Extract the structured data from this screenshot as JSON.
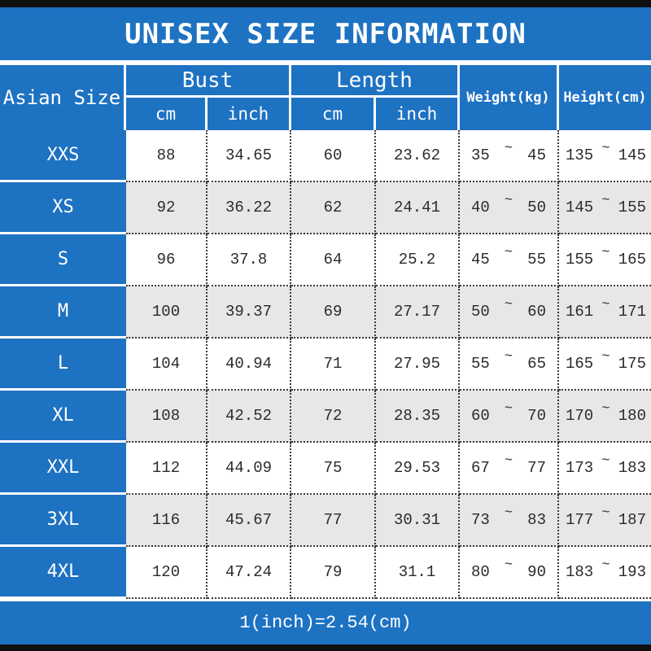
{
  "title": "UNISEX SIZE INFORMATION",
  "footer": "1(inch)=2.54(cm)",
  "tilde": "~",
  "colors": {
    "blue": "#1e72c2",
    "alt_row": "#e8e6e7",
    "bar_black": "#101010",
    "number_text": "#2b2b2b",
    "header_text": "#ffffff"
  },
  "table": {
    "header": {
      "size_col": "Asian Size",
      "bust": "Bust",
      "length": "Length",
      "weight": "Weight(kg)",
      "height": "Height(cm)",
      "sub_cm": "cm",
      "sub_inch": "inch"
    },
    "rows": [
      {
        "size": "XXS",
        "bust_cm": "88",
        "bust_inch": "34.65",
        "length_cm": "60",
        "length_inch": "23.62",
        "weight_min": "35",
        "weight_max": "45",
        "height_min": "135",
        "height_max": "145"
      },
      {
        "size": "XS",
        "bust_cm": "92",
        "bust_inch": "36.22",
        "length_cm": "62",
        "length_inch": "24.41",
        "weight_min": "40",
        "weight_max": "50",
        "height_min": "145",
        "height_max": "155"
      },
      {
        "size": "S",
        "bust_cm": "96",
        "bust_inch": "37.8",
        "length_cm": "64",
        "length_inch": "25.2",
        "weight_min": "45",
        "weight_max": "55",
        "height_min": "155",
        "height_max": "165"
      },
      {
        "size": "M",
        "bust_cm": "100",
        "bust_inch": "39.37",
        "length_cm": "69",
        "length_inch": "27.17",
        "weight_min": "50",
        "weight_max": "60",
        "height_min": "161",
        "height_max": "171"
      },
      {
        "size": "L",
        "bust_cm": "104",
        "bust_inch": "40.94",
        "length_cm": "71",
        "length_inch": "27.95",
        "weight_min": "55",
        "weight_max": "65",
        "height_min": "165",
        "height_max": "175"
      },
      {
        "size": "XL",
        "bust_cm": "108",
        "bust_inch": "42.52",
        "length_cm": "72",
        "length_inch": "28.35",
        "weight_min": "60",
        "weight_max": "70",
        "height_min": "170",
        "height_max": "180"
      },
      {
        "size": "XXL",
        "bust_cm": "112",
        "bust_inch": "44.09",
        "length_cm": "75",
        "length_inch": "29.53",
        "weight_min": "67",
        "weight_max": "77",
        "height_min": "173",
        "height_max": "183"
      },
      {
        "size": "3XL",
        "bust_cm": "116",
        "bust_inch": "45.67",
        "length_cm": "77",
        "length_inch": "30.31",
        "weight_min": "73",
        "weight_max": "83",
        "height_min": "177",
        "height_max": "187"
      },
      {
        "size": "4XL",
        "bust_cm": "120",
        "bust_inch": "47.24",
        "length_cm": "79",
        "length_inch": "31.1",
        "weight_min": "80",
        "weight_max": "90",
        "height_min": "183",
        "height_max": "193"
      }
    ]
  },
  "chart_data": {
    "type": "table",
    "title": "UNISEX SIZE INFORMATION",
    "columns": [
      "Asian Size",
      "Bust cm",
      "Bust inch",
      "Length cm",
      "Length inch",
      "Weight(kg)",
      "Height(cm)"
    ],
    "rows": [
      [
        "XXS",
        88,
        34.65,
        60,
        23.62,
        "35~45",
        "135~145"
      ],
      [
        "XS",
        92,
        36.22,
        62,
        24.41,
        "40~50",
        "145~155"
      ],
      [
        "S",
        96,
        37.8,
        64,
        25.2,
        "45~55",
        "155~165"
      ],
      [
        "M",
        100,
        39.37,
        69,
        27.17,
        "50~60",
        "161~171"
      ],
      [
        "L",
        104,
        40.94,
        71,
        27.95,
        "55~65",
        "165~175"
      ],
      [
        "XL",
        108,
        42.52,
        72,
        28.35,
        "60~70",
        "170~180"
      ],
      [
        "XXL",
        112,
        44.09,
        75,
        29.53,
        "67~77",
        "173~183"
      ],
      [
        "3XL",
        116,
        45.67,
        77,
        30.31,
        "73~83",
        "177~187"
      ],
      [
        "4XL",
        120,
        47.24,
        79,
        31.1,
        "80~90",
        "183~193"
      ]
    ],
    "note": "1(inch)=2.54(cm)"
  }
}
